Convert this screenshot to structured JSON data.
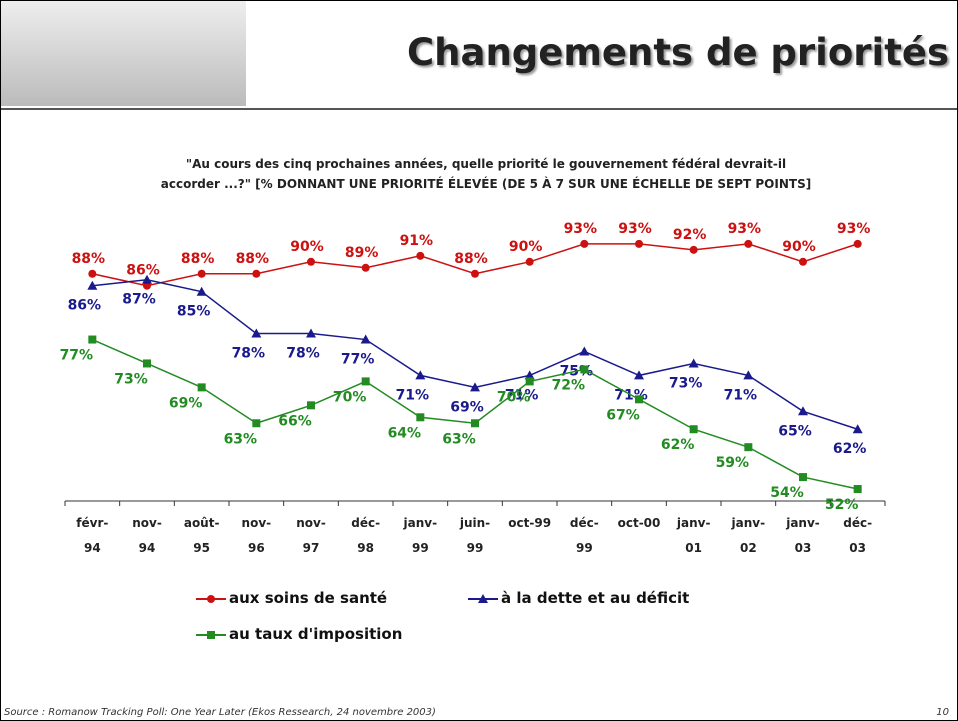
{
  "header": {
    "title": "Changements de priorités"
  },
  "chart_data": {
    "type": "line",
    "title": "\"Au cours des cinq prochaines années, quelle priorité le gouvernement fédéral devrait-il accorder ...?\" [% DONNANT UNE PRIORITÉ ÉLEVÉE (DE 5 À 7 SUR UNE ÉCHELLE DE SEPT POINTS]",
    "categories": [
      "févr-\n94",
      "nov-\n94",
      "août-\n95",
      "nov-\n96",
      "nov-\n97",
      "déc-\n98",
      "janv-\n99",
      "juin-\n99",
      "oct-99",
      "déc-\n99",
      "oct-00",
      "janv-\n01",
      "janv-\n02",
      "janv-\n03",
      "déc-\n03"
    ],
    "ylim": [
      50,
      100
    ],
    "series": [
      {
        "name": "aux soins de santé",
        "color": "#cc1111",
        "marker": "circle",
        "values": [
          88,
          86,
          88,
          88,
          90,
          89,
          91,
          88,
          90,
          93,
          93,
          92,
          93,
          90,
          93
        ],
        "value_labels": [
          "88%",
          "86%",
          "88%",
          "88%",
          "90%",
          "89%",
          "91%",
          "88%",
          "90%",
          "93%",
          "93%",
          "92%",
          "93%",
          "90%",
          "93%"
        ]
      },
      {
        "name": "à la dette et au déficit",
        "color": "#1a1a8c",
        "marker": "triangle",
        "values": [
          86,
          87,
          85,
          78,
          78,
          77,
          71,
          69,
          71,
          75,
          71,
          73,
          71,
          65,
          62
        ],
        "value_labels": [
          "86%",
          "87%",
          "85%",
          "78%",
          "78%",
          "77%",
          "71%",
          "69%",
          "71%",
          "75%",
          "71%",
          "73%",
          "71%",
          "65%",
          "62%"
        ]
      },
      {
        "name": "au taux d'imposition",
        "color": "#228b22",
        "marker": "square",
        "values": [
          77,
          73,
          69,
          63,
          66,
          70,
          64,
          63,
          70,
          72,
          67,
          62,
          59,
          54,
          52
        ],
        "value_labels": [
          "77%",
          "73%",
          "69%",
          "63%",
          "66%",
          "70%",
          "64%",
          "63%",
          "70%",
          "72%",
          "67%",
          "62%",
          "59%",
          "54%",
          "52%"
        ]
      }
    ]
  },
  "footer": {
    "source": "Source : Romanow Tracking Poll:  One Year Later (Ekos Ressearch, 24 novembre 2003)",
    "page": "10"
  }
}
